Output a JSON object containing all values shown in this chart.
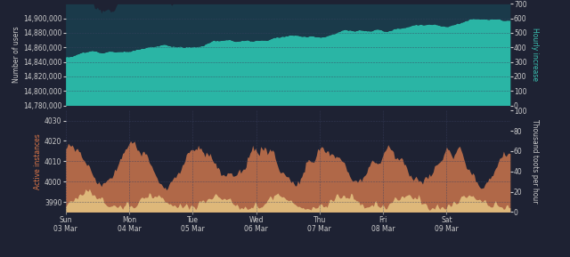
{
  "bg_color": "#1e2233",
  "top_chart": {
    "ylim_left": [
      14780000,
      14920000
    ],
    "ylim_right": [
      0,
      700
    ],
    "yticks_left": [
      14780000,
      14800000,
      14820000,
      14840000,
      14860000,
      14880000,
      14900000
    ],
    "yticks_right": [
      0,
      100,
      200,
      300,
      400,
      500,
      600,
      700
    ],
    "ylabel_left": "Number of users",
    "ylabel_right": "Hourly increase",
    "area_color_users": "#2ab5a5",
    "area_color_hourly": "#1a3a4a",
    "line_color_users": "#3bc4b4"
  },
  "bottom_chart": {
    "ylim_left": [
      3985,
      4035
    ],
    "ylim_right": [
      0,
      100
    ],
    "yticks_left": [
      3990,
      4000,
      4010,
      4020,
      4030
    ],
    "yticks_right": [
      0,
      20,
      40,
      60,
      80,
      100
    ],
    "ylabel_left": "Active instances",
    "ylabel_right": "Thousand toots per hour",
    "area_color_instances": "#b06848",
    "area_color_toots": "#deb87a"
  },
  "x_tick_labels": [
    "Sun\n03 Mar",
    "Mon\n04 Mar",
    "Tue\n05 Mar",
    "Wed\n06 Mar",
    "Thu\n07 Mar",
    "Fri\n08 Mar",
    "Sat\n09 Mar"
  ],
  "n_points": 336,
  "text_color": "#cccccc",
  "grid_color": "#3a4060",
  "tick_color": "#888888"
}
